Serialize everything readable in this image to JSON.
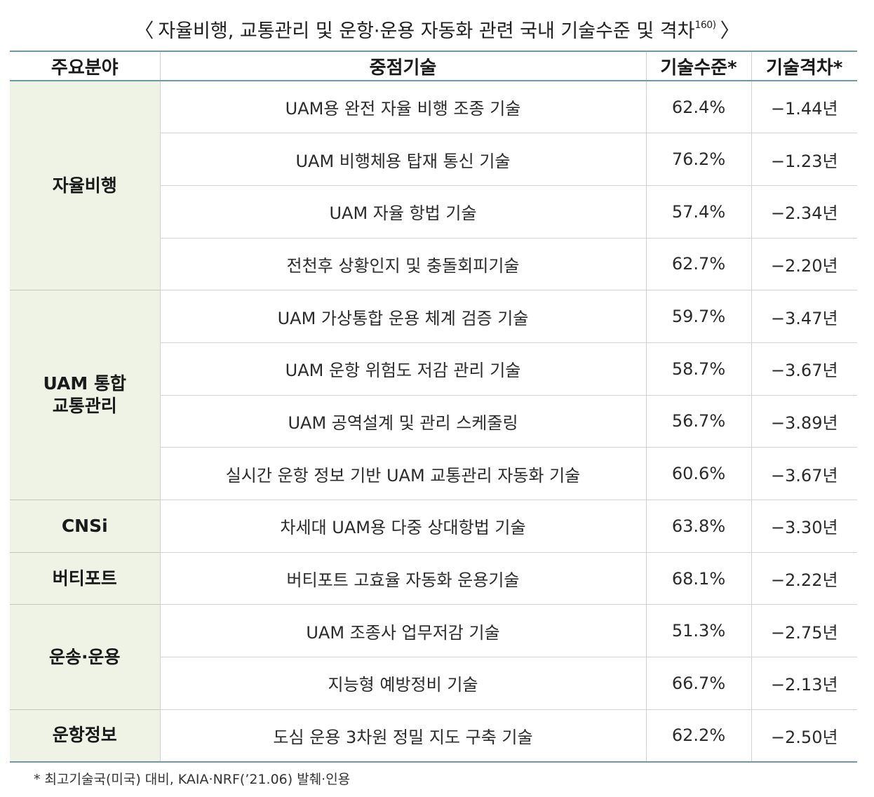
{
  "title": {
    "open": "〈",
    "text": "자율비행, 교통관리 및 운항·운용 자동화 관련 국내 기술수준 및 격차",
    "sup": "160)",
    "close": "〉"
  },
  "table": {
    "headers": [
      "주요분야",
      "중점기술",
      "기술수준*",
      "기술격차*"
    ],
    "groups": [
      {
        "area_lines": [
          "자율비행"
        ],
        "rows": [
          {
            "tech": "UAM용 완전 자율 비행 조종 기술",
            "level": "62.4%",
            "gap": "−1.44년"
          },
          {
            "tech": "UAM 비행체용 탑재 통신 기술",
            "level": "76.2%",
            "gap": "−1.23년"
          },
          {
            "tech": "UAM 자율 항법 기술",
            "level": "57.4%",
            "gap": "−2.34년"
          },
          {
            "tech": "전천후 상황인지 및 충돌회피기술",
            "level": "62.7%",
            "gap": "−2.20년"
          }
        ]
      },
      {
        "area_lines": [
          "UAM 통합",
          "교통관리"
        ],
        "rows": [
          {
            "tech": "UAM 가상통합 운용 체계 검증 기술",
            "level": "59.7%",
            "gap": "−3.47년"
          },
          {
            "tech": "UAM 운항 위험도 저감 관리 기술",
            "level": "58.7%",
            "gap": "−3.67년"
          },
          {
            "tech": "UAM 공역설계 및 관리 스케줄링",
            "level": "56.7%",
            "gap": "−3.89년"
          },
          {
            "tech": "실시간 운항 정보 기반 UAM 교통관리 자동화 기술",
            "level": "60.6%",
            "gap": "−3.67년"
          }
        ]
      },
      {
        "area_lines": [
          "CNSi"
        ],
        "rows": [
          {
            "tech": "차세대 UAM용 다중 상대항법 기술",
            "level": "63.8%",
            "gap": "−3.30년"
          }
        ]
      },
      {
        "area_lines": [
          "버티포트"
        ],
        "rows": [
          {
            "tech": "버티포트 고효율 자동화 운용기술",
            "level": "68.1%",
            "gap": "−2.22년"
          }
        ]
      },
      {
        "area_lines": [
          "운송·운용"
        ],
        "rows": [
          {
            "tech": "UAM 조종사 업무저감 기술",
            "level": "51.3%",
            "gap": "−2.75년"
          },
          {
            "tech": "지능형 예방정비 기술",
            "level": "66.7%",
            "gap": "−2.13년"
          }
        ]
      },
      {
        "area_lines": [
          "운항정보"
        ],
        "rows": [
          {
            "tech": "도심 운용 3차원 정밀 지도 구축 기술",
            "level": "62.2%",
            "gap": "−2.50년"
          }
        ]
      }
    ]
  },
  "footnote": "* 최고기술국(미국) 대비, KAIA·NRF(’21.06) 발췌·인용"
}
